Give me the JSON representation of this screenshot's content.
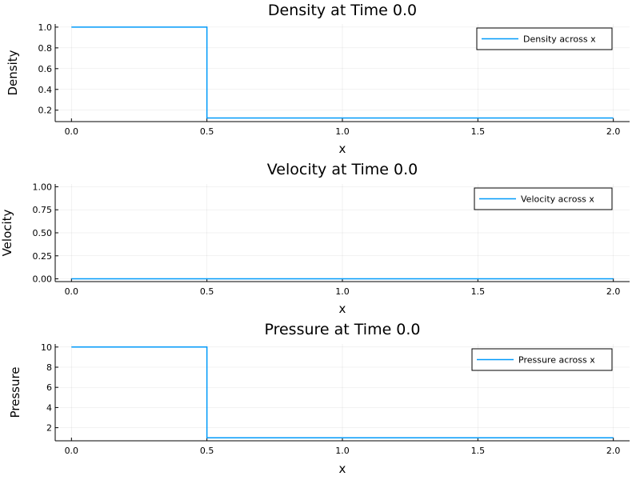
{
  "colors": {
    "series": "#009AFA"
  },
  "chart_data": [
    {
      "type": "line",
      "title": "Density at Time 0.0",
      "xlabel": "x",
      "ylabel": "Density",
      "xlim": [
        -0.06,
        2.06
      ],
      "ylim": [
        0.09,
        1.03
      ],
      "xticks": [
        0.0,
        0.5,
        1.0,
        1.5,
        2.0
      ],
      "xtick_labels": [
        "0.0",
        "0.5",
        "1.0",
        "1.5",
        "2.0"
      ],
      "yticks": [
        0.2,
        0.4,
        0.6,
        0.8,
        1.0
      ],
      "ytick_labels": [
        "0.2",
        "0.4",
        "0.6",
        "0.8",
        "1.0"
      ],
      "grid": true,
      "legend_position": "top-right",
      "series": [
        {
          "name": "Density across x",
          "x": [
            0.0,
            0.5,
            0.5,
            2.0
          ],
          "y": [
            1.0,
            1.0,
            0.125,
            0.125
          ]
        }
      ]
    },
    {
      "type": "line",
      "title": "Velocity at Time 0.0",
      "xlabel": "x",
      "ylabel": "Velocity",
      "xlim": [
        -0.06,
        2.06
      ],
      "ylim": [
        -0.03,
        1.03
      ],
      "xticks": [
        0.0,
        0.5,
        1.0,
        1.5,
        2.0
      ],
      "xtick_labels": [
        "0.0",
        "0.5",
        "1.0",
        "1.5",
        "2.0"
      ],
      "yticks": [
        0.0,
        0.25,
        0.5,
        0.75,
        1.0
      ],
      "ytick_labels": [
        "0.00",
        "0.25",
        "0.50",
        "0.75",
        "1.00"
      ],
      "grid": true,
      "legend_position": "top-right",
      "series": [
        {
          "name": "Velocity across x",
          "x": [
            0.0,
            2.0
          ],
          "y": [
            0.0,
            0.0
          ]
        }
      ]
    },
    {
      "type": "line",
      "title": "Pressure at Time 0.0",
      "xlabel": "x",
      "ylabel": "Pressure",
      "xlim": [
        -0.06,
        2.06
      ],
      "ylim": [
        0.7,
        10.3
      ],
      "xticks": [
        0.0,
        0.5,
        1.0,
        1.5,
        2.0
      ],
      "xtick_labels": [
        "0.0",
        "0.5",
        "1.0",
        "1.5",
        "2.0"
      ],
      "yticks": [
        2,
        4,
        6,
        8,
        10
      ],
      "ytick_labels": [
        "2",
        "4",
        "6",
        "8",
        "10"
      ],
      "grid": true,
      "legend_position": "top-right",
      "series": [
        {
          "name": "Pressure across x",
          "x": [
            0.0,
            0.5,
            0.5,
            2.0
          ],
          "y": [
            10.0,
            10.0,
            1.0,
            1.0
          ]
        }
      ]
    }
  ]
}
